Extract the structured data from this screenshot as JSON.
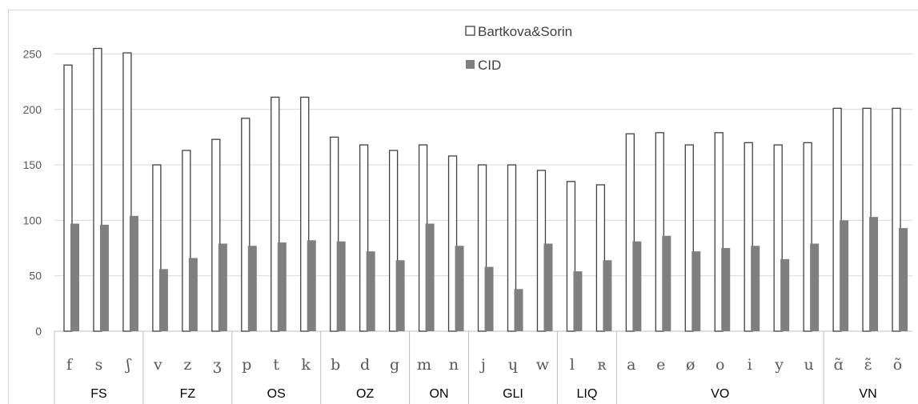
{
  "chart_data": {
    "type": "bar",
    "categories": [
      "f",
      "s",
      "ʃ",
      "v",
      "z",
      "ʒ",
      "p",
      "t",
      "k",
      "b",
      "d",
      "g",
      "m",
      "n",
      "j",
      "ɥ",
      "w",
      "l",
      "ʀ",
      "a",
      "e",
      "ø",
      "o",
      "i",
      "y",
      "u",
      "ɑ̃",
      "ɛ̃",
      "õ"
    ],
    "groups": [
      {
        "label": "FS",
        "count": 3
      },
      {
        "label": "FZ",
        "count": 3
      },
      {
        "label": "OS",
        "count": 3
      },
      {
        "label": "OZ",
        "count": 3
      },
      {
        "label": "ON",
        "count": 2
      },
      {
        "label": "GLI",
        "count": 3
      },
      {
        "label": "LIQ",
        "count": 2
      },
      {
        "label": "VO",
        "count": 7
      },
      {
        "label": "VN",
        "count": 3
      }
    ],
    "series": [
      {
        "name": "Bartkova&Sorin",
        "values": [
          240,
          255,
          251,
          150,
          163,
          173,
          192,
          211,
          211,
          175,
          168,
          163,
          168,
          158,
          150,
          150,
          145,
          135,
          132,
          178,
          179,
          168,
          179,
          170,
          168,
          170,
          201,
          201,
          201
        ]
      },
      {
        "name": "CID",
        "values": [
          97,
          96,
          104,
          56,
          66,
          79,
          77,
          80,
          82,
          81,
          72,
          64,
          97,
          77,
          58,
          38,
          79,
          54,
          64,
          81,
          86,
          72,
          75,
          77,
          65,
          79,
          100,
          103,
          93
        ]
      }
    ],
    "yticks": [
      0,
      50,
      100,
      150,
      200,
      250
    ],
    "ylim": [
      0,
      290
    ],
    "grid": true,
    "legend_position": "top-center",
    "colors": {
      "series0_fill": "#ffffff",
      "series0_stroke": "#404040",
      "series1_fill": "#7f7f7f",
      "grid": "#d9d9d9",
      "axis": "#bfbfbf"
    }
  }
}
